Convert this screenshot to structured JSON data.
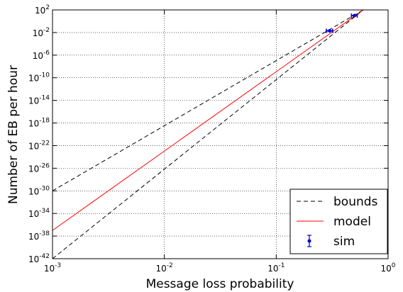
{
  "chart_data": {
    "type": "line",
    "title": "",
    "xlabel": "Message loss probability",
    "ylabel": "Number of EB per hour",
    "xscale": "log",
    "yscale": "log",
    "xlim": [
      0.001,
      1
    ],
    "ylim": [
      1e-42,
      100
    ],
    "grid": true,
    "legend_position": "bottom-right",
    "x_ticks": [
      {
        "base": "10",
        "exp": "-3"
      },
      {
        "base": "10",
        "exp": "-2"
      },
      {
        "base": "10",
        "exp": "-1"
      },
      {
        "base": "10",
        "exp": "0"
      }
    ],
    "y_ticks": [
      {
        "base": "10",
        "exp": "2"
      },
      {
        "base": "10",
        "exp": "-2"
      },
      {
        "base": "10",
        "exp": "-6"
      },
      {
        "base": "10",
        "exp": "-10"
      },
      {
        "base": "10",
        "exp": "-14"
      },
      {
        "base": "10",
        "exp": "-18"
      },
      {
        "base": "10",
        "exp": "-22"
      },
      {
        "base": "10",
        "exp": "-26"
      },
      {
        "base": "10",
        "exp": "-30"
      },
      {
        "base": "10",
        "exp": "-34"
      },
      {
        "base": "10",
        "exp": "-38"
      },
      {
        "base": "10",
        "exp": "-42"
      }
    ],
    "series": [
      {
        "name": "bounds",
        "style": "dashed",
        "color": "#000000",
        "x": [
          0.001,
          0.6
        ],
        "y": [
          1e-30,
          100
        ]
      },
      {
        "name": "",
        "style": "dashed",
        "color": "#000000",
        "x": [
          0.001,
          0.6
        ],
        "y": [
          1e-42,
          100
        ]
      },
      {
        "name": "model",
        "style": "solid",
        "color": "#ff0000",
        "x": [
          0.001,
          0.6
        ],
        "y": [
          1e-37,
          100
        ]
      },
      {
        "name": "sim",
        "style": "errorbar",
        "color": "#0000cc",
        "x": [
          0.3,
          0.5
        ],
        "y": [
          0.02,
          10
        ],
        "xerr": [
          0.02,
          0.03
        ]
      }
    ]
  }
}
